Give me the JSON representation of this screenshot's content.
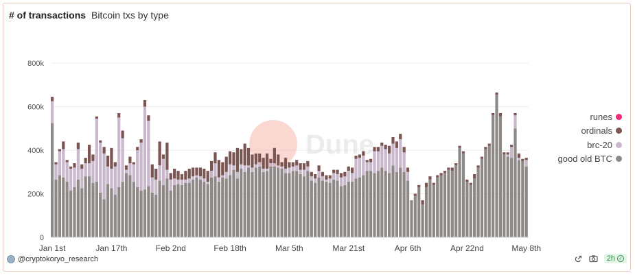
{
  "header": {
    "title": "# of transactions",
    "subtitle": "Bitcoin txs by type"
  },
  "footer": {
    "author": "@cryptokoryo_research",
    "refresh": "2h"
  },
  "watermark": "Dune",
  "icons": {
    "camera": "camera-icon",
    "share": "share-icon",
    "check": "check-circle-icon",
    "avatar": "avatar"
  },
  "colors": {
    "runes": "#f0287a",
    "ordinals": "#7a5552",
    "brc20": "#c9b8cc",
    "good_old_btc": "#8e8886",
    "grid": "#ececec"
  },
  "chart_data": {
    "type": "bar",
    "stacked": true,
    "x_start": "2024-01-01",
    "x_tick_labels": [
      "Jan 1st",
      "Jan 17th",
      "Feb 2nd",
      "Feb 18th",
      "Mar 5th",
      "Mar 21st",
      "Apr 6th",
      "Apr 22nd",
      "May 8th"
    ],
    "y_tick_labels": [
      "0",
      "200k",
      "400k",
      "600k",
      "800k"
    ],
    "ylim": [
      0,
      960000
    ],
    "grid": true,
    "legend_position": "right",
    "series": [
      {
        "name": "good old BTC",
        "key": "good_old_btc",
        "values": [
          525000,
          265000,
          285000,
          275000,
          255000,
          215000,
          230000,
          265000,
          225000,
          280000,
          280000,
          250000,
          255000,
          205000,
          175000,
          245000,
          225000,
          195000,
          230000,
          255000,
          295000,
          285000,
          255000,
          230000,
          215000,
          220000,
          235000,
          205000,
          195000,
          260000,
          240000,
          270000,
          215000,
          240000,
          245000,
          240000,
          250000,
          250000,
          265000,
          275000,
          265000,
          255000,
          245000,
          275000,
          280000,
          255000,
          275000,
          270000,
          285000,
          310000,
          270000,
          315000,
          300000,
          320000,
          300000,
          320000,
          325000,
          300000,
          305000,
          325000,
          325000,
          320000,
          315000,
          295000,
          295000,
          305000,
          305000,
          290000,
          280000,
          305000,
          260000,
          250000,
          275000,
          260000,
          255000,
          250000,
          265000,
          260000,
          235000,
          240000,
          255000,
          255000,
          270000,
          275000,
          285000,
          305000,
          305000,
          295000,
          305000,
          320000,
          305000,
          295000,
          330000,
          300000,
          320000,
          300000,
          260000,
          170000,
          190000,
          230000,
          150000,
          230000,
          265000,
          240000,
          275000,
          285000,
          295000,
          310000,
          305000,
          330000,
          410000,
          385000,
          255000,
          240000,
          270000,
          320000,
          360000,
          405000,
          420000,
          560000,
          655000,
          555000,
          380000,
          370000,
          365000,
          500000,
          355000,
          350000,
          325000
        ]
      },
      {
        "name": "brc-20",
        "key": "brc20",
        "values": [
          100000,
          70000,
          110000,
          130000,
          90000,
          100000,
          90000,
          140000,
          90000,
          60000,
          60000,
          100000,
          290000,
          230000,
          210000,
          80000,
          90000,
          130000,
          320000,
          200000,
          15000,
          55000,
          80000,
          170000,
          220000,
          380000,
          300000,
          70000,
          70000,
          70000,
          120000,
          40000,
          50000,
          30000,
          20000,
          25000,
          15000,
          20000,
          15000,
          10000,
          15000,
          15000,
          10000,
          30000,
          60000,
          20000,
          10000,
          30000,
          50000,
          20000,
          30000,
          20000,
          30000,
          10000,
          20000,
          15000,
          20000,
          15000,
          10000,
          15000,
          15000,
          10000,
          10000,
          20000,
          25000,
          20000,
          25000,
          20000,
          30000,
          20000,
          20000,
          20000,
          30000,
          20000,
          10000,
          20000,
          30000,
          30000,
          40000,
          40000,
          50000,
          40000,
          90000,
          90000,
          90000,
          40000,
          40000,
          100000,
          90000,
          100000,
          100000,
          90000,
          100000,
          110000,
          130000,
          90000,
          40000,
          0,
          0,
          0,
          0,
          0,
          0,
          0,
          0,
          0,
          0,
          0,
          0,
          0,
          0,
          0,
          0,
          0,
          0,
          0,
          0,
          0,
          0,
          0,
          0,
          0,
          0,
          10000,
          50000,
          60000,
          10000,
          0,
          30000
        ]
      },
      {
        "name": "ordinals",
        "key": "ordinals",
        "values": [
          20000,
          10000,
          10000,
          35000,
          10000,
          10000,
          20000,
          30000,
          20000,
          25000,
          85000,
          30000,
          10000,
          10000,
          30000,
          50000,
          95000,
          20000,
          20000,
          35000,
          20000,
          30000,
          10000,
          15000,
          15000,
          30000,
          25000,
          60000,
          50000,
          110000,
          20000,
          125000,
          30000,
          45000,
          40000,
          25000,
          40000,
          45000,
          40000,
          35000,
          40000,
          45000,
          50000,
          45000,
          50000,
          80000,
          60000,
          70000,
          60000,
          60000,
          110000,
          70000,
          100000,
          80000,
          60000,
          50000,
          40000,
          50000,
          70000,
          20000,
          70000,
          50000,
          20000,
          50000,
          25000,
          20000,
          25000,
          30000,
          30000,
          25000,
          20000,
          20000,
          25000,
          20000,
          20000,
          15000,
          15000,
          20000,
          20000,
          20000,
          20000,
          25000,
          15000,
          15000,
          20000,
          10000,
          15000,
          20000,
          20000,
          15000,
          20000,
          35000,
          30000,
          30000,
          25000,
          25000,
          20000,
          0,
          10000,
          10000,
          20000,
          20000,
          15000,
          10000,
          10000,
          10000,
          10000,
          10000,
          15000,
          10000,
          10000,
          10000,
          10000,
          10000,
          20000,
          10000,
          10000,
          10000,
          10000,
          10000,
          10000,
          15000,
          10000,
          10000,
          10000,
          10000,
          20000,
          10000,
          10000
        ]
      },
      {
        "name": "runes",
        "key": "runes",
        "values": [
          0,
          0,
          0,
          0,
          0,
          0,
          0,
          0,
          0,
          0,
          0,
          0,
          0,
          0,
          0,
          0,
          0,
          0,
          0,
          0,
          0,
          0,
          0,
          0,
          0,
          0,
          0,
          0,
          0,
          0,
          0,
          0,
          0,
          0,
          0,
          0,
          0,
          0,
          0,
          0,
          0,
          0,
          0,
          0,
          0,
          0,
          0,
          0,
          0,
          0,
          0,
          0,
          0,
          0,
          0,
          0,
          0,
          0,
          0,
          0,
          0,
          0,
          0,
          0,
          0,
          0,
          0,
          0,
          0,
          0,
          0,
          0,
          0,
          0,
          0,
          0,
          0,
          0,
          0,
          0,
          0,
          0,
          0,
          0,
          0,
          0,
          0,
          0,
          0,
          0,
          0,
          0,
          0,
          0,
          0,
          0,
          0,
          0,
          0,
          0,
          0,
          0,
          0,
          0,
          0,
          0,
          0,
          0,
          0,
          0,
          0,
          0,
          0,
          0,
          0,
          0,
          0,
          0,
          0,
          0,
          0,
          0,
          0,
          0,
          0,
          0,
          0,
          0,
          0
        ]
      }
    ]
  }
}
